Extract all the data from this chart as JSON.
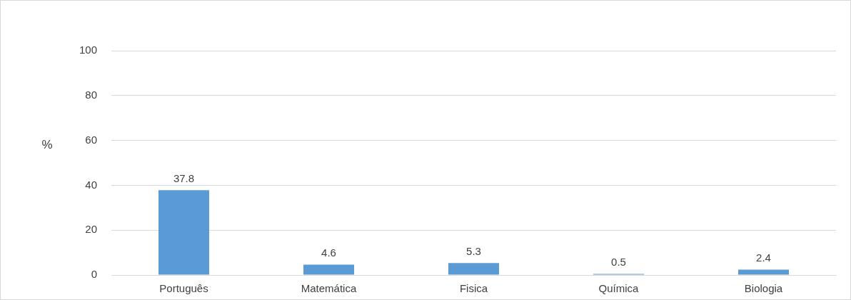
{
  "chart_data": {
    "type": "bar",
    "ylabel": "%",
    "categories": [
      "Português",
      "Matemática",
      "Fisica",
      "Química",
      "Biologia"
    ],
    "values": [
      37.8,
      4.6,
      5.3,
      0.5,
      2.4
    ],
    "color": "#5b9bd5",
    "ylim": [
      0,
      100
    ],
    "yticks": [
      0,
      20,
      40,
      60,
      80,
      100
    ],
    "grid": "y",
    "data_labels": true,
    "legend": false
  }
}
